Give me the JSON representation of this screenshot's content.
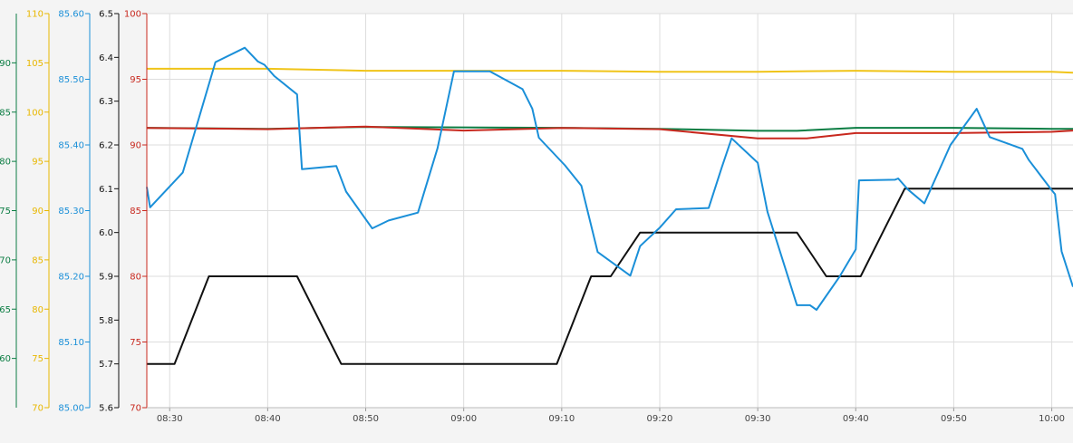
{
  "chart_data": {
    "type": "line",
    "grid": true,
    "x_ticks": [
      "08:30",
      "08:40",
      "08:50",
      "09:00",
      "09:10",
      "09:20",
      "09:30",
      "09:40",
      "09:50",
      "10:00"
    ],
    "x_range": [
      "08:27:40",
      "10:02:10"
    ],
    "axes": [
      {
        "id": "green",
        "color": "#0b7d43",
        "min": 55,
        "max": 95,
        "ticks": [
          {
            "v": 60,
            "label": "60"
          },
          {
            "v": 65,
            "label": "65"
          },
          {
            "v": 70,
            "label": "70"
          },
          {
            "v": 75,
            "label": "75"
          },
          {
            "v": 80,
            "label": "80"
          },
          {
            "v": 85,
            "label": "85"
          },
          {
            "v": 90,
            "label": "90"
          }
        ]
      },
      {
        "id": "yellow",
        "color": "#e8b700",
        "min": 70,
        "max": 110,
        "ticks": [
          {
            "v": 70,
            "label": "70"
          },
          {
            "v": 75,
            "label": "75"
          },
          {
            "v": 80,
            "label": "80"
          },
          {
            "v": 85,
            "label": "85"
          },
          {
            "v": 90,
            "label": "90"
          },
          {
            "v": 95,
            "label": "95"
          },
          {
            "v": 100,
            "label": "100"
          },
          {
            "v": 105,
            "label": "105"
          },
          {
            "v": 110,
            "label": "110"
          }
        ]
      },
      {
        "id": "blue",
        "color": "#1a8fd8",
        "min": 85.0,
        "max": 85.6,
        "ticks": [
          {
            "v": 85.0,
            "label": "85.00"
          },
          {
            "v": 85.1,
            "label": "85.10"
          },
          {
            "v": 85.2,
            "label": "85.20"
          },
          {
            "v": 85.3,
            "label": "85.30"
          },
          {
            "v": 85.4,
            "label": "85.40"
          },
          {
            "v": 85.5,
            "label": "85.50"
          },
          {
            "v": 85.6,
            "label": "85.60"
          }
        ]
      },
      {
        "id": "black",
        "color": "#111111",
        "min": 5.6,
        "max": 6.5,
        "ticks": [
          {
            "v": 5.6,
            "label": "5.6"
          },
          {
            "v": 5.7,
            "label": "5.7"
          },
          {
            "v": 5.8,
            "label": "5.8"
          },
          {
            "v": 5.9,
            "label": "5.9"
          },
          {
            "v": 6.0,
            "label": "6.0"
          },
          {
            "v": 6.1,
            "label": "6.1"
          },
          {
            "v": 6.2,
            "label": "6.2"
          },
          {
            "v": 6.3,
            "label": "6.3"
          },
          {
            "v": 6.4,
            "label": "6.4"
          },
          {
            "v": 6.5,
            "label": "6.5"
          }
        ]
      },
      {
        "id": "red",
        "color": "#c8281e",
        "min": 70,
        "max": 100,
        "ticks": [
          {
            "v": 70,
            "label": "70"
          },
          {
            "v": 75,
            "label": "75"
          },
          {
            "v": 80,
            "label": "80"
          },
          {
            "v": 85,
            "label": "85"
          },
          {
            "v": 90,
            "label": "90"
          },
          {
            "v": 95,
            "label": "95"
          },
          {
            "v": 100,
            "label": "100"
          }
        ]
      }
    ],
    "series": [
      {
        "axis": "yellow",
        "color": "#f0c419",
        "x": [
          "08:27:40",
          "08:40:00",
          "08:50:00",
          "09:10:00",
          "09:20:00",
          "09:30:00",
          "09:40:00",
          "09:50:00",
          "10:00:00",
          "10:02:10"
        ],
        "y": [
          104.4,
          104.4,
          104.2,
          104.2,
          104.1,
          104.1,
          104.2,
          104.1,
          104.1,
          104.0
        ]
      },
      {
        "axis": "green",
        "color": "#0b7d43",
        "x": [
          "08:27:40",
          "08:40:00",
          "08:50:00",
          "09:10:00",
          "09:20:00",
          "09:30:00",
          "09:34:00",
          "09:40:00",
          "09:50:00",
          "10:00:00",
          "10:02:10"
        ],
        "y": [
          83.4,
          83.3,
          83.5,
          83.4,
          83.3,
          83.1,
          83.1,
          83.4,
          83.4,
          83.3,
          83.3
        ]
      },
      {
        "axis": "red",
        "color": "#c8281e",
        "x": [
          "08:27:40",
          "08:40:00",
          "08:50:00",
          "09:00:00",
          "09:10:00",
          "09:20:00",
          "09:30:00",
          "09:35:00",
          "09:40:00",
          "09:50:00",
          "10:00:00",
          "10:02:10"
        ],
        "y": [
          91.3,
          91.2,
          91.4,
          91.1,
          91.3,
          91.2,
          90.5,
          90.5,
          90.9,
          90.9,
          91.0,
          91.1
        ]
      },
      {
        "axis": "black",
        "color": "#111111",
        "x": [
          "08:27:40",
          "08:30:30",
          "08:34:00",
          "08:43:00",
          "08:47:30",
          "09:09:30",
          "09:13:00",
          "09:15:00",
          "09:18:00",
          "09:34:00",
          "09:37:00",
          "09:40:30",
          "09:45:00",
          "10:02:10"
        ],
        "y": [
          5.7,
          5.7,
          5.9,
          5.9,
          5.7,
          5.7,
          5.9,
          5.9,
          6.0,
          6.0,
          5.9,
          5.9,
          6.1,
          6.1
        ]
      },
      {
        "axis": "blue",
        "color": "#1a8fd8",
        "x": [
          "08:27:40",
          "08:28:00",
          "08:31:20",
          "08:33:00",
          "08:34:40",
          "08:37:40",
          "08:39:00",
          "08:39:40",
          "08:40:40",
          "08:43:00",
          "08:43:30",
          "08:47:00",
          "08:48:00",
          "08:50:40",
          "08:52:20",
          "08:55:20",
          "08:57:20",
          "08:59:00",
          "09:02:40",
          "09:06:00",
          "09:07:00",
          "09:07:40",
          "09:10:20",
          "09:12:00",
          "09:13:40",
          "09:17:00",
          "09:18:00",
          "09:20:00",
          "09:21:40",
          "09:25:00",
          "09:26:20",
          "09:27:20",
          "09:30:00",
          "09:31:00",
          "09:34:00",
          "09:35:20",
          "09:36:00",
          "09:38:20",
          "09:40:00",
          "09:40:20",
          "09:44:00",
          "09:44:20",
          "09:45:20",
          "09:47:00",
          "09:49:40",
          "09:52:20",
          "09:53:40",
          "09:57:00",
          "09:57:40",
          "10:00:00",
          "10:00:20",
          "10:01:00",
          "10:02:10"
        ],
        "y": [
          85.336,
          85.305,
          85.358,
          85.442,
          85.526,
          85.548,
          85.527,
          85.522,
          85.505,
          85.477,
          85.363,
          85.368,
          85.329,
          85.273,
          85.285,
          85.297,
          85.395,
          85.512,
          85.512,
          85.485,
          85.455,
          85.411,
          85.369,
          85.338,
          85.237,
          85.201,
          85.246,
          85.274,
          85.302,
          85.304,
          85.366,
          85.41,
          85.373,
          85.298,
          85.156,
          85.156,
          85.149,
          85.199,
          85.241,
          85.346,
          85.347,
          85.349,
          85.332,
          85.311,
          85.4,
          85.455,
          85.412,
          85.394,
          85.377,
          85.331,
          85.325,
          85.238,
          85.184
        ]
      }
    ]
  }
}
